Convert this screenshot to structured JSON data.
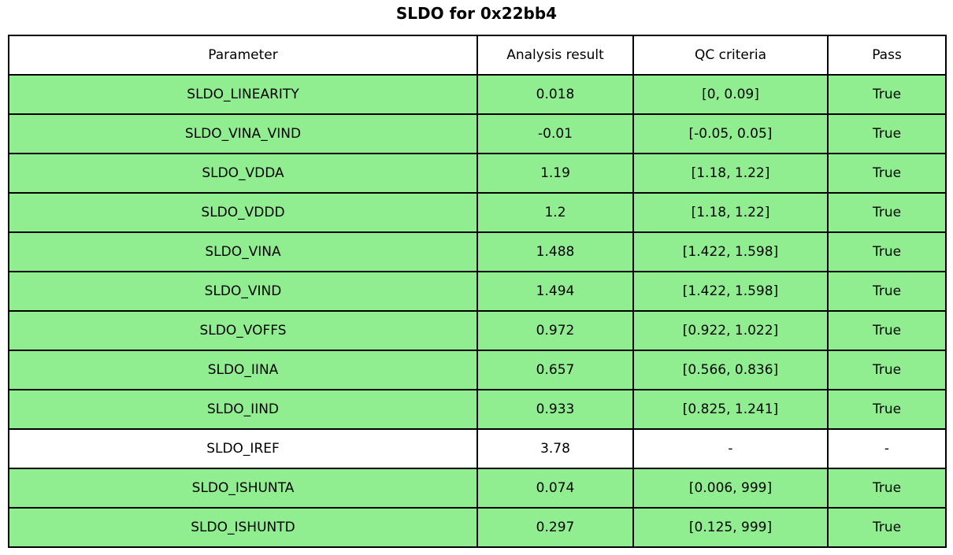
{
  "title": "SLDO for 0x22bb4",
  "chart_data": {
    "type": "table",
    "title": "SLDO for 0x22bb4",
    "columns": [
      "Parameter",
      "Analysis result",
      "QC criteria",
      "Pass"
    ],
    "rows": [
      [
        "SLDO_LINEARITY",
        "0.018",
        "[0, 0.09]",
        "True"
      ],
      [
        "SLDO_VINA_VIND",
        "-0.01",
        "[-0.05, 0.05]",
        "True"
      ],
      [
        "SLDO_VDDA",
        "1.19",
        "[1.18, 1.22]",
        "True"
      ],
      [
        "SLDO_VDDD",
        "1.2",
        "[1.18, 1.22]",
        "True"
      ],
      [
        "SLDO_VINA",
        "1.488",
        "[1.422, 1.598]",
        "True"
      ],
      [
        "SLDO_VIND",
        "1.494",
        "[1.422, 1.598]",
        "True"
      ],
      [
        "SLDO_VOFFS",
        "0.972",
        "[0.922, 1.022]",
        "True"
      ],
      [
        "SLDO_IINA",
        "0.657",
        "[0.566, 0.836]",
        "True"
      ],
      [
        "SLDO_IIND",
        "0.933",
        "[0.825, 1.241]",
        "True"
      ],
      [
        "SLDO_IREF",
        "3.78",
        "-",
        "-"
      ],
      [
        "SLDO_ISHUNTA",
        "0.074",
        "[0.006, 999]",
        "True"
      ],
      [
        "SLDO_ISHUNTD",
        "0.297",
        "[0.125, 999]",
        "True"
      ]
    ],
    "row_colors": [
      "#90EE90",
      "#90EE90",
      "#90EE90",
      "#90EE90",
      "#90EE90",
      "#90EE90",
      "#90EE90",
      "#90EE90",
      "#90EE90",
      "#FFFFFF",
      "#90EE90",
      "#90EE90"
    ],
    "header_color": "#FFFFFF",
    "border_color": "#000000",
    "text_color": "#000000",
    "layout": {
      "grid": "full-borders",
      "legend": "none"
    }
  }
}
